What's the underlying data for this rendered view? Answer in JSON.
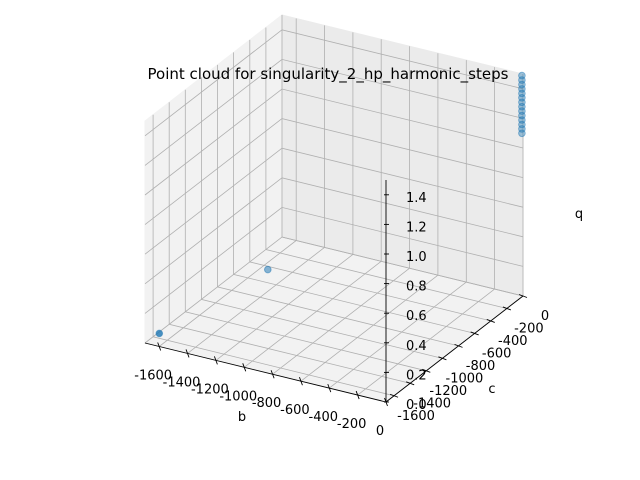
{
  "chart_data": {
    "type": "scatter",
    "projection": "3d",
    "title": "Point cloud for singularity_2_hp_harmonic_steps",
    "xlabel": "b",
    "ylabel": "c",
    "zlabel": "q",
    "xlim": [
      -1700,
      0
    ],
    "ylim": [
      -1700,
      0
    ],
    "zlim": [
      0,
      1.5
    ],
    "x_ticks": [
      "-1600",
      "-1400",
      "-1200",
      "-1000",
      "-800",
      "-600",
      "-400",
      "-200",
      "0"
    ],
    "y_ticks": [
      "-1600",
      "-1400",
      "-1200",
      "-1000",
      "-800",
      "-600",
      "-400",
      "-200",
      "0"
    ],
    "z_ticks": [
      "0.0",
      "0.2",
      "0.4",
      "0.6",
      "0.8",
      "1.0",
      "1.2",
      "1.4"
    ],
    "grid": true,
    "marker_color": "#1f77b4",
    "points": [
      {
        "b": -1690,
        "c": -1540,
        "q": 0.0
      },
      {
        "b": -1550,
        "c": -440,
        "q": 0.0
      },
      {
        "b": -5,
        "c": -5,
        "q": 1.1
      },
      {
        "b": -5,
        "c": -5,
        "q": 1.13
      },
      {
        "b": -5,
        "c": -5,
        "q": 1.16
      },
      {
        "b": -5,
        "c": -5,
        "q": 1.19
      },
      {
        "b": -5,
        "c": -5,
        "q": 1.22
      },
      {
        "b": -5,
        "c": -5,
        "q": 1.25
      },
      {
        "b": -5,
        "c": -5,
        "q": 1.28
      },
      {
        "b": -5,
        "c": -5,
        "q": 1.31
      },
      {
        "b": -5,
        "c": -5,
        "q": 1.34
      },
      {
        "b": -5,
        "c": -5,
        "q": 1.37
      },
      {
        "b": -5,
        "c": -5,
        "q": 1.4
      },
      {
        "b": -5,
        "c": -5,
        "q": 1.43
      },
      {
        "b": -5,
        "c": -5,
        "q": 1.46
      },
      {
        "b": -5,
        "c": -5,
        "q": 1.49
      }
    ]
  }
}
